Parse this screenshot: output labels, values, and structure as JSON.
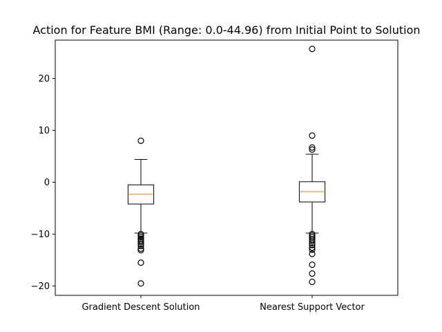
{
  "chart_data": {
    "type": "boxplot",
    "title": "Action for Feature BMI (Range: 0.0-44.96) from Initial Point to Solution",
    "xlabel": "",
    "ylabel": "",
    "categories": [
      "Gradient Descent Solution",
      "Nearest Support Vector"
    ],
    "ylim": [
      -21.8,
      27.4
    ],
    "yticks": [
      -20,
      -10,
      0,
      10,
      20
    ],
    "grid": false,
    "colors": {
      "box": "#000000",
      "median": "#ff7f0e",
      "flier": "#000000"
    },
    "boxes": [
      {
        "name": "Gradient Descent Solution",
        "whisker_low": -9.8,
        "q1": -4.2,
        "median": -2.3,
        "q3": -0.5,
        "whisker_high": 4.4,
        "fliers": [
          8.0,
          -10.0,
          -10.3,
          -10.6,
          -10.9,
          -11.2,
          -11.5,
          -11.9,
          -12.3,
          -12.8,
          -13.1,
          -15.5,
          -19.5
        ]
      },
      {
        "name": "Nearest Support Vector",
        "whisker_low": -9.8,
        "q1": -3.8,
        "median": -1.8,
        "q3": 0.1,
        "whisker_high": 5.4,
        "fliers": [
          25.7,
          9.0,
          6.7,
          6.3,
          -10.0,
          -10.3,
          -10.6,
          -11.0,
          -11.3,
          -11.7,
          -12.1,
          -12.6,
          -13.0,
          -13.8,
          -15.9,
          -17.6,
          -19.2
        ]
      }
    ]
  }
}
